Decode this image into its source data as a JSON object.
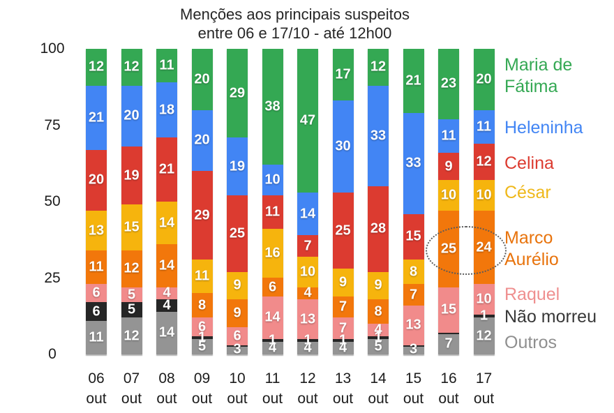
{
  "title": {
    "line1": "Menções aos principais suspeitos",
    "line2": "entre 06 e 17/10 - até 12h00"
  },
  "chart_data": {
    "type": "bar",
    "stacked": true,
    "stack_total": 100,
    "title": "Menções aos principais suspeitos entre 06 e 17/10 - até 12h00",
    "categories": [
      "06 out",
      "07 out",
      "08 out",
      "09 out",
      "10 out",
      "11 out",
      "12 out",
      "13 out",
      "14 out",
      "15 out",
      "16 out",
      "17 out"
    ],
    "xlabel": "",
    "ylabel": "",
    "ylim": [
      0,
      100
    ],
    "y_ticks": [
      0,
      25,
      50,
      75,
      100
    ],
    "grid": false,
    "legend_position": "right",
    "series": [
      {
        "name": "Maria de Fátima",
        "slug": "maria-de-fatima",
        "color": "#34a853",
        "values": [
          12,
          12,
          11,
          20,
          29,
          38,
          47,
          17,
          12,
          21,
          23,
          20
        ]
      },
      {
        "name": "Heleninha",
        "slug": "heleninha",
        "color": "#4285f4",
        "values": [
          21,
          20,
          18,
          20,
          19,
          10,
          14,
          30,
          33,
          33,
          11,
          11
        ]
      },
      {
        "name": "Celina",
        "slug": "celina",
        "color": "#dc3b30",
        "values": [
          20,
          19,
          21,
          29,
          25,
          11,
          7,
          25,
          28,
          15,
          9,
          12
        ]
      },
      {
        "name": "César",
        "slug": "cesar",
        "color": "#f6b40d",
        "values": [
          13,
          15,
          14,
          11,
          9,
          16,
          10,
          9,
          9,
          8,
          10,
          10
        ]
      },
      {
        "name": "Marco Aurélio",
        "slug": "marco-aurelio",
        "color": "#f2770b",
        "values": [
          11,
          12,
          14,
          8,
          9,
          6,
          4,
          7,
          8,
          7,
          25,
          24
        ]
      },
      {
        "name": "Raquel",
        "slug": "raquel",
        "color": "#f18b8b",
        "values": [
          6,
          5,
          4,
          6,
          6,
          14,
          13,
          7,
          4,
          13,
          15,
          10
        ]
      },
      {
        "name": "Não morreu",
        "slug": "nao-morreu",
        "color": "#262626",
        "values": [
          6,
          5,
          4,
          1,
          0,
          1,
          1,
          1,
          1,
          0,
          0,
          1
        ],
        "min_sliver": true
      },
      {
        "name": "Outros",
        "slug": "outros",
        "color": "#949494",
        "values": [
          11,
          12,
          14,
          5,
          3,
          4,
          4,
          4,
          5,
          3,
          7,
          12
        ]
      }
    ],
    "annotation": {
      "shape": "dotted-ellipse",
      "series": "Marco Aurélio",
      "categories": [
        "16 out",
        "17 out"
      ],
      "values": [
        25,
        24
      ]
    }
  },
  "legend": {
    "items": [
      {
        "lines": [
          "Maria de",
          "Fátima"
        ],
        "color": "#34a853"
      },
      {
        "lines": [
          "Heleninha"
        ],
        "color": "#4285f4"
      },
      {
        "lines": [
          "Celina"
        ],
        "color": "#dc3b30"
      },
      {
        "lines": [
          "César"
        ],
        "color": "#efb81a"
      },
      {
        "lines": [
          "Marco",
          "Aurélio"
        ],
        "color": "#e8730c"
      },
      {
        "lines": [
          "Raquel"
        ],
        "color": "#ef8f8f"
      },
      {
        "lines": [
          "Não morreu"
        ],
        "color": "#383838"
      },
      {
        "lines": [
          "Outros"
        ],
        "color": "#8f8f8f"
      }
    ]
  }
}
